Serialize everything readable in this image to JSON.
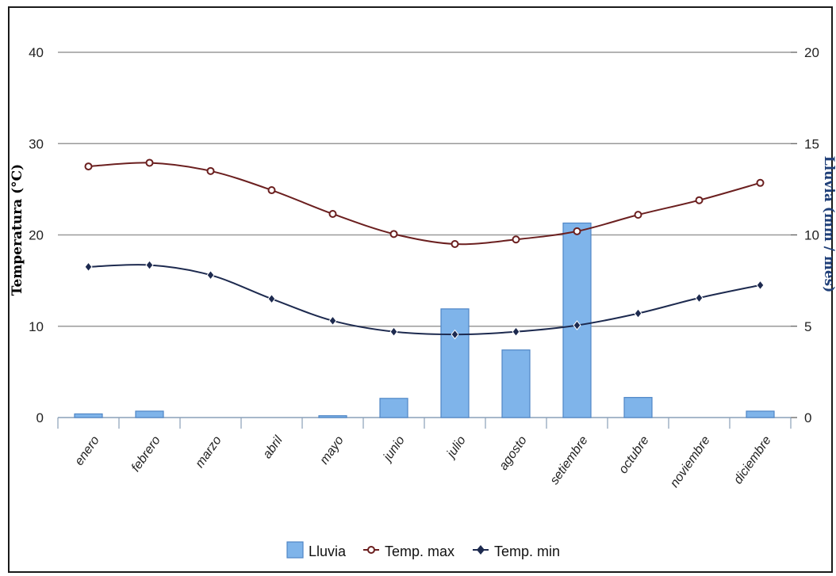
{
  "chart_data": {
    "type": "bar",
    "categories": [
      "enero",
      "febrero",
      "marzo",
      "abril",
      "mayo",
      "junio",
      "julio",
      "agosto",
      "setiembre",
      "octubre",
      "noviembre",
      "diciembre"
    ],
    "series": [
      {
        "name": "Lluvia",
        "type": "bar",
        "axis": "right",
        "color": "#7fb4ea",
        "values": [
          0.2,
          0.35,
          0,
          0,
          0.1,
          1.05,
          5.95,
          3.7,
          10.65,
          1.1,
          0,
          0.35
        ]
      },
      {
        "name": "Temp. max",
        "type": "line",
        "axis": "left",
        "color": "#6b1f1f",
        "marker": "circle",
        "values": [
          27.5,
          27.9,
          27.0,
          24.9,
          22.3,
          20.1,
          19.0,
          19.5,
          20.4,
          22.2,
          23.8,
          25.7
        ]
      },
      {
        "name": "Temp. min",
        "type": "line",
        "axis": "left",
        "color": "#1d2a4f",
        "marker": "diamond",
        "values": [
          16.5,
          16.7,
          15.6,
          13.0,
          10.6,
          9.4,
          9.1,
          9.4,
          10.1,
          11.4,
          13.1,
          14.5
        ]
      }
    ],
    "ylabel": "Temperatura (°C)",
    "y2label": "Lluvia (mm / mes)",
    "ylim": [
      0,
      40
    ],
    "y2lim": [
      0,
      20
    ],
    "yticks": [
      "0",
      "10",
      "20",
      "30",
      "40"
    ],
    "y2ticks": [
      "0",
      "5",
      "10",
      "15",
      "20"
    ],
    "grid": true,
    "legend": "bottom-center"
  }
}
